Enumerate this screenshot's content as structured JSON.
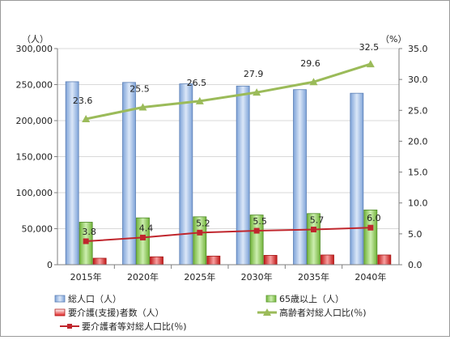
{
  "colors": {
    "total_population": "#a9c4ea",
    "age65_plus": "#92d050",
    "care_certified": "#e02020",
    "elderly_ratio": "#9bbb59",
    "care_ratio": "#c0262d",
    "gridline": "#d9d9d9",
    "frame": "#9a9a9a"
  },
  "chart_data": {
    "type": "bar",
    "categories": [
      "2015年",
      "2020年",
      "2025年",
      "2030年",
      "2035年",
      "2040年"
    ],
    "y_left": {
      "unit_label": "（人）",
      "range": [
        0,
        300000
      ],
      "ticks": [
        "0",
        "50,000",
        "100,000",
        "150,000",
        "200,000",
        "250,000",
        "300,000"
      ]
    },
    "y_right": {
      "unit_label": "（%）",
      "range": [
        0,
        35
      ],
      "ticks": [
        "0.0",
        "5.0",
        "10.0",
        "15.0",
        "20.0",
        "25.0",
        "30.0",
        "35.0"
      ]
    },
    "bar_series": [
      {
        "name": "総人口（人）",
        "values": [
          254000,
          253000,
          251000,
          248000,
          243000,
          238000
        ]
      },
      {
        "name": "65歳以上（人）",
        "values": [
          59000,
          65000,
          66500,
          69000,
          71000,
          76000
        ]
      },
      {
        "name": "要介護(支援)者数（人）",
        "values": [
          9000,
          11000,
          12000,
          13000,
          13500,
          13500
        ]
      }
    ],
    "line_series": [
      {
        "name": "高齢者対総人口比(％)",
        "values": [
          23.6,
          25.5,
          26.5,
          27.9,
          29.6,
          32.5
        ],
        "labels": [
          "23.6",
          "25.5",
          "26.5",
          "27.9",
          "29.6",
          "32.5"
        ],
        "marker": "triangle"
      },
      {
        "name": "要介護者等対総人口比(％)",
        "values": [
          3.8,
          4.4,
          5.2,
          5.5,
          5.7,
          6.0
        ],
        "labels": [
          "3.8",
          "4.4",
          "5.2",
          "5.5",
          "5.7",
          "6.0"
        ],
        "marker": "square"
      }
    ],
    "gridlines": true,
    "legend_position": "bottom"
  }
}
